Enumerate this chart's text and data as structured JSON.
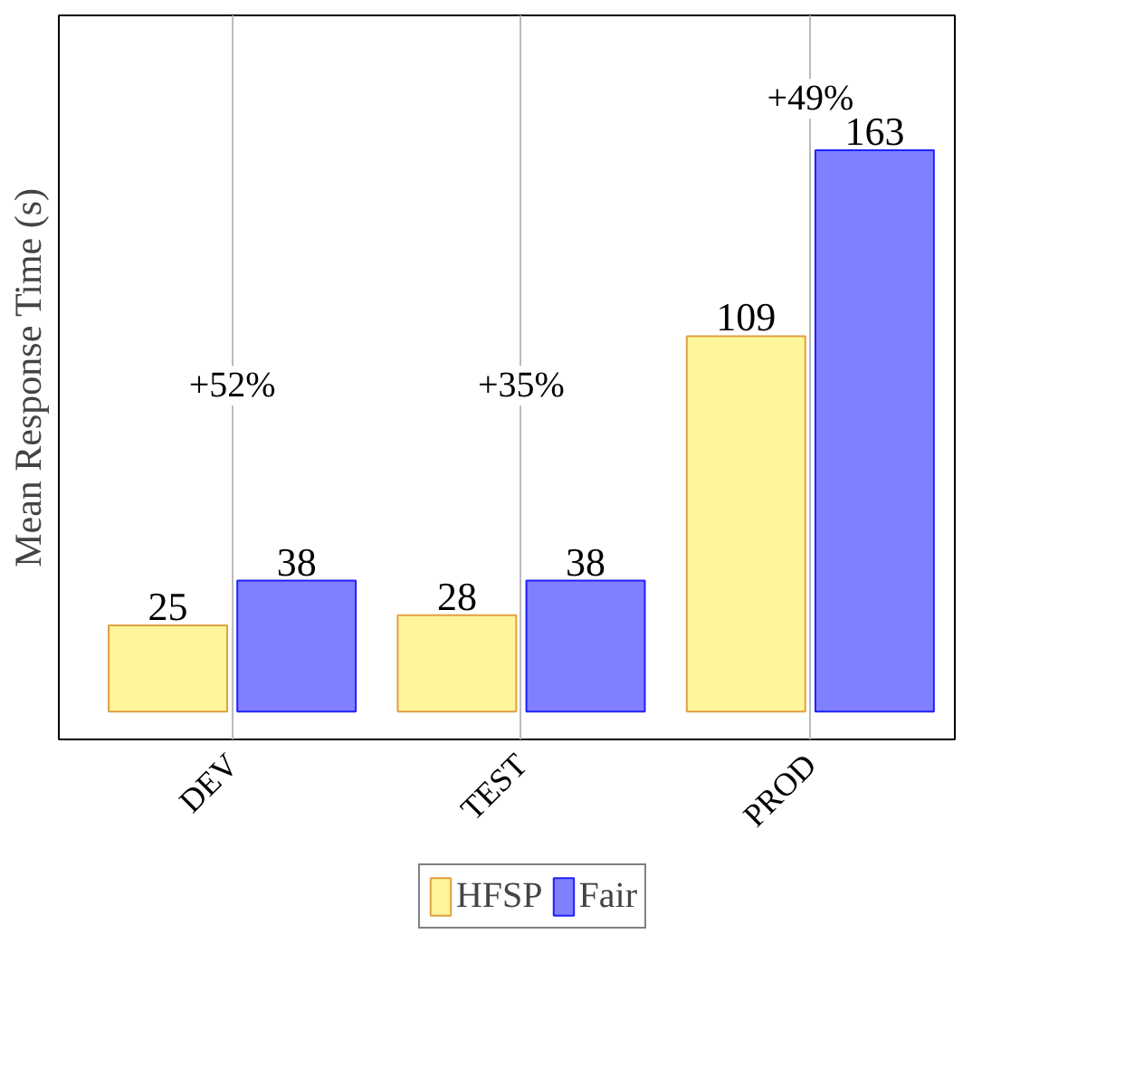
{
  "chart_data": {
    "type": "bar",
    "ylabel": "Mean Response Time (s)",
    "categories": [
      "DEV",
      "TEST",
      "PROD"
    ],
    "series": [
      {
        "name": "HFSP",
        "color": "#fff59a",
        "values": [
          25,
          28,
          109
        ]
      },
      {
        "name": "Fair",
        "color": "#8080ff",
        "values": [
          38,
          38,
          163
        ]
      }
    ],
    "data_labels": true,
    "grid": "x",
    "legend": "bottom",
    "annotations": [
      "+52%",
      "+35%",
      "+49%"
    ]
  }
}
